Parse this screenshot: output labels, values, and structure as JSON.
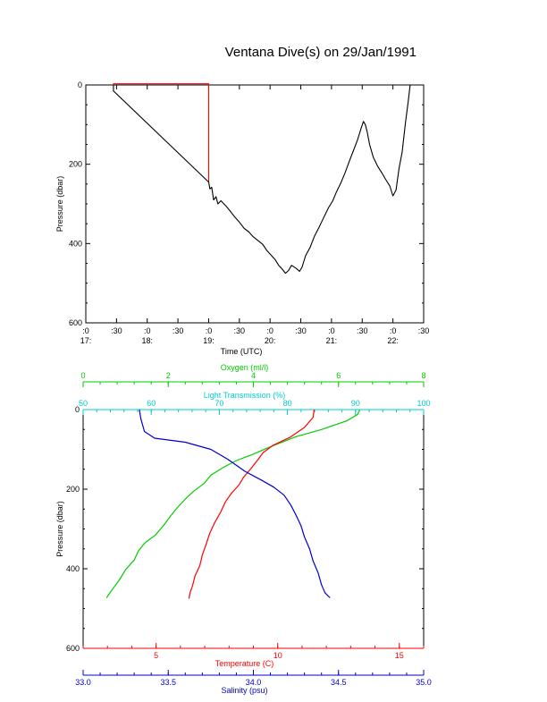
{
  "title": "Ventana Dive(s) on 29/Jan/1991",
  "colors": {
    "axis": "#000000",
    "pressure_trace": "#000000",
    "pressure_trace_start": "#ff0000",
    "oxygen": "#00cc00",
    "light_transmission": "#00cccc",
    "temperature": "#ff0000",
    "salinity": "#0000cc"
  },
  "chart_data": [
    {
      "type": "line",
      "title": "Ventana Dive(s) on 29/Jan/1991",
      "xlabel": "Time (UTC)",
      "ylabel": "Pressure (dbar)",
      "x_unit": "hours UTC",
      "xlim": [
        17.0,
        22.5
      ],
      "ylim": [
        600,
        0
      ],
      "y_reversed": true,
      "x_ticks": [
        {
          "value": 17.0,
          "line1": ":0",
          "line2": "17:"
        },
        {
          "value": 17.5,
          "line1": ":30",
          "line2": ""
        },
        {
          "value": 18.0,
          "line1": ":0",
          "line2": "18:"
        },
        {
          "value": 18.5,
          "line1": ":30",
          "line2": ""
        },
        {
          "value": 19.0,
          "line1": ":0",
          "line2": "19:"
        },
        {
          "value": 19.5,
          "line1": ":30",
          "line2": ""
        },
        {
          "value": 20.0,
          "line1": ":0",
          "line2": "20:"
        },
        {
          "value": 20.5,
          "line1": ":30",
          "line2": ""
        },
        {
          "value": 21.0,
          "line1": ":0",
          "line2": "21:"
        },
        {
          "value": 21.5,
          "line1": ":30",
          "line2": ""
        },
        {
          "value": 22.0,
          "line1": ":0",
          "line2": "22:"
        },
        {
          "value": 22.5,
          "line1": ":30",
          "line2": ""
        }
      ],
      "y_ticks": [
        0,
        200,
        400,
        600
      ],
      "series": [
        {
          "color_key": "pressure_trace_start",
          "points": [
            [
              17.45,
              0
            ],
            [
              17.45,
              -3
            ],
            [
              19.0,
              -3
            ],
            [
              19.0,
              245
            ]
          ]
        },
        {
          "color_key": "pressure_trace",
          "points": [
            [
              17.45,
              0
            ],
            [
              17.45,
              15
            ],
            [
              19.0,
              245
            ],
            [
              19.02,
              262
            ],
            [
              19.05,
              258
            ],
            [
              19.08,
              290
            ],
            [
              19.12,
              282
            ],
            [
              19.15,
              300
            ],
            [
              19.2,
              292
            ],
            [
              19.28,
              305
            ],
            [
              19.35,
              318
            ],
            [
              19.42,
              332
            ],
            [
              19.5,
              346
            ],
            [
              19.58,
              362
            ],
            [
              19.65,
              370
            ],
            [
              19.72,
              382
            ],
            [
              19.8,
              392
            ],
            [
              19.88,
              402
            ],
            [
              19.95,
              418
            ],
            [
              20.02,
              430
            ],
            [
              20.08,
              440
            ],
            [
              20.14,
              455
            ],
            [
              20.2,
              465
            ],
            [
              20.25,
              475
            ],
            [
              20.3,
              468
            ],
            [
              20.35,
              455
            ],
            [
              20.42,
              462
            ],
            [
              20.48,
              470
            ],
            [
              20.52,
              460
            ],
            [
              20.58,
              430
            ],
            [
              20.65,
              410
            ],
            [
              20.72,
              382
            ],
            [
              20.8,
              358
            ],
            [
              20.88,
              332
            ],
            [
              20.95,
              310
            ],
            [
              21.02,
              292
            ],
            [
              21.08,
              270
            ],
            [
              21.15,
              248
            ],
            [
              21.22,
              222
            ],
            [
              21.28,
              196
            ],
            [
              21.35,
              168
            ],
            [
              21.42,
              140
            ],
            [
              21.48,
              110
            ],
            [
              21.52,
              92
            ],
            [
              21.55,
              100
            ],
            [
              21.58,
              118
            ],
            [
              21.62,
              150
            ],
            [
              21.68,
              182
            ],
            [
              21.75,
              205
            ],
            [
              21.82,
              222
            ],
            [
              21.88,
              238
            ],
            [
              21.95,
              255
            ],
            [
              22.0,
              280
            ],
            [
              22.05,
              265
            ],
            [
              22.1,
              210
            ],
            [
              22.15,
              170
            ],
            [
              22.2,
              100
            ],
            [
              22.25,
              40
            ],
            [
              22.28,
              0
            ]
          ]
        }
      ]
    },
    {
      "type": "line",
      "ylabel": "Pressure (dbar)",
      "ylim": [
        600,
        0
      ],
      "y_reversed": true,
      "y_ticks": [
        0,
        200,
        400,
        600
      ],
      "axes": [
        {
          "key": "oxygen",
          "label": "Oxygen (ml/l)",
          "position": "top-outer",
          "range": [
            0,
            8
          ],
          "ticks": [
            {
              "value": 0,
              "label": "0"
            },
            {
              "value": 2,
              "label": "2"
            },
            {
              "value": 4,
              "label": "4"
            },
            {
              "value": 6,
              "label": "6"
            },
            {
              "value": 8,
              "label": "8"
            }
          ]
        },
        {
          "key": "light_transmission",
          "label": "Light Transmission (%)",
          "position": "top-inner",
          "range": [
            50,
            100
          ],
          "ticks": [
            {
              "value": 50,
              "label": "50"
            },
            {
              "value": 60,
              "label": "60"
            },
            {
              "value": 70,
              "label": "70"
            },
            {
              "value": 80,
              "label": "80"
            },
            {
              "value": 90,
              "label": "90"
            },
            {
              "value": 100,
              "label": "100"
            }
          ]
        },
        {
          "key": "temperature",
          "label": "Temperature (C)",
          "position": "bottom-inner",
          "range": [
            2,
            16
          ],
          "ticks": [
            {
              "value": 5,
              "label": "5"
            },
            {
              "value": 10,
              "label": "10"
            },
            {
              "value": 15,
              "label": "15"
            }
          ]
        },
        {
          "key": "salinity",
          "label": "Salinity (psu)",
          "position": "bottom-outer",
          "range": [
            33.0,
            35.0
          ],
          "ticks": [
            {
              "value": 33.0,
              "label": "33.0"
            },
            {
              "value": 33.5,
              "label": "33.5"
            },
            {
              "value": 34.0,
              "label": "34.0"
            },
            {
              "value": 34.5,
              "label": "34.5"
            },
            {
              "value": 35.0,
              "label": "35.0"
            }
          ]
        }
      ],
      "series": [
        {
          "axis": "oxygen",
          "color_key": "oxygen",
          "points": [
            [
              6.5,
              0
            ],
            [
              6.45,
              12
            ],
            [
              6.2,
              28
            ],
            [
              5.6,
              50
            ],
            [
              5.0,
              68
            ],
            [
              4.6,
              85
            ],
            [
              4.3,
              98
            ],
            [
              4.0,
              112
            ],
            [
              3.6,
              128
            ],
            [
              3.3,
              145
            ],
            [
              3.0,
              165
            ],
            [
              2.85,
              185
            ],
            [
              2.6,
              205
            ],
            [
              2.4,
              225
            ],
            [
              2.2,
              248
            ],
            [
              2.05,
              268
            ],
            [
              1.9,
              290
            ],
            [
              1.7,
              315
            ],
            [
              1.45,
              335
            ],
            [
              1.3,
              355
            ],
            [
              1.2,
              378
            ],
            [
              1.0,
              402
            ],
            [
              0.85,
              428
            ],
            [
              0.7,
              450
            ],
            [
              0.6,
              465
            ],
            [
              0.55,
              473
            ]
          ]
        },
        {
          "axis": "temperature",
          "color_key": "temperature",
          "points": [
            [
              11.5,
              0
            ],
            [
              11.45,
              20
            ],
            [
              11.1,
              45
            ],
            [
              10.5,
              70
            ],
            [
              9.8,
              90
            ],
            [
              9.4,
              108
            ],
            [
              9.2,
              125
            ],
            [
              8.9,
              148
            ],
            [
              8.6,
              170
            ],
            [
              8.4,
              190
            ],
            [
              8.1,
              210
            ],
            [
              7.85,
              232
            ],
            [
              7.65,
              258
            ],
            [
              7.4,
              285
            ],
            [
              7.2,
              312
            ],
            [
              7.05,
              340
            ],
            [
              6.9,
              365
            ],
            [
              6.8,
              392
            ],
            [
              6.6,
              418
            ],
            [
              6.5,
              442
            ],
            [
              6.4,
              460
            ],
            [
              6.35,
              475
            ]
          ]
        },
        {
          "axis": "salinity",
          "color_key": "salinity",
          "points": [
            [
              33.33,
              0
            ],
            [
              33.34,
              25
            ],
            [
              33.36,
              55
            ],
            [
              33.42,
              72
            ],
            [
              33.6,
              82
            ],
            [
              33.75,
              100
            ],
            [
              33.85,
              125
            ],
            [
              33.95,
              155
            ],
            [
              34.05,
              178
            ],
            [
              34.12,
              195
            ],
            [
              34.18,
              215
            ],
            [
              34.22,
              240
            ],
            [
              34.25,
              265
            ],
            [
              34.28,
              292
            ],
            [
              34.3,
              320
            ],
            [
              34.33,
              350
            ],
            [
              34.35,
              380
            ],
            [
              34.38,
              410
            ],
            [
              34.4,
              440
            ],
            [
              34.42,
              460
            ],
            [
              34.45,
              473
            ]
          ]
        }
      ]
    }
  ]
}
